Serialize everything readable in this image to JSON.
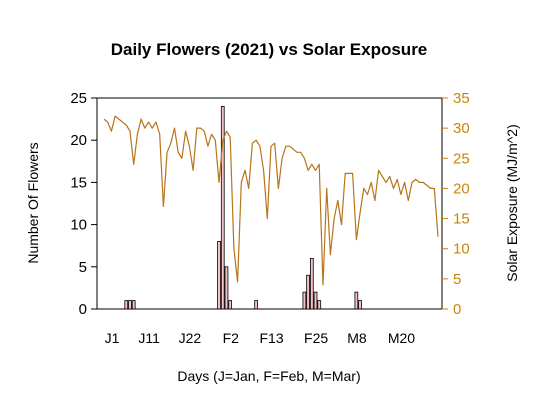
{
  "chart_data": {
    "type": "bar+line",
    "title": "Daily Flowers (2021) vs Solar Exposure",
    "xlabel": "Days (J=Jan, F=Feb, M=Mar)",
    "ylabel_left": "Number Of Flowers",
    "ylabel_right": "Solar Exposure (MJ/m^2)",
    "x_range": [
      1,
      91
    ],
    "x_unit": "day of year 2021",
    "ylim_left": [
      0,
      25
    ],
    "ylim_right": [
      0,
      35
    ],
    "yticks_left": [
      0,
      5,
      10,
      15,
      20,
      25
    ],
    "yticks_right": [
      0,
      5,
      10,
      15,
      20,
      25,
      30,
      35
    ],
    "xticks": [
      {
        "day": 1,
        "label": "J1"
      },
      {
        "day": 11,
        "label": "J11"
      },
      {
        "day": 22,
        "label": "J22"
      },
      {
        "day": 33,
        "label": "F2"
      },
      {
        "day": 44,
        "label": "F13"
      },
      {
        "day": 56,
        "label": "F25"
      },
      {
        "day": 67,
        "label": "M8"
      },
      {
        "day": 79,
        "label": "M20"
      }
    ],
    "colors": {
      "bars_fill": "#f4c2c8",
      "bars_stroke": "#000000",
      "line": "#b8741a",
      "right_axis": "#c8860b"
    },
    "flowers": [
      {
        "day": 7,
        "value": 1
      },
      {
        "day": 8,
        "value": 1
      },
      {
        "day": 9,
        "value": 1
      },
      {
        "day": 32,
        "value": 8
      },
      {
        "day": 33,
        "value": 24
      },
      {
        "day": 34,
        "value": 5
      },
      {
        "day": 35,
        "value": 1
      },
      {
        "day": 42,
        "value": 1
      },
      {
        "day": 55,
        "value": 2
      },
      {
        "day": 56,
        "value": 4
      },
      {
        "day": 57,
        "value": 6
      },
      {
        "day": 58,
        "value": 2
      },
      {
        "day": 59,
        "value": 1
      },
      {
        "day": 69,
        "value": 2
      },
      {
        "day": 70,
        "value": 1
      }
    ],
    "solar_exposure": {
      "x": [
        1,
        2,
        3,
        4,
        5,
        6,
        7,
        8,
        9,
        10,
        11,
        12,
        13,
        14,
        15,
        16,
        17,
        18,
        19,
        20,
        21,
        22,
        23,
        24,
        25,
        26,
        27,
        28,
        29,
        30,
        31,
        32,
        33,
        34,
        35,
        36,
        37,
        38,
        39,
        40,
        41,
        42,
        43,
        44,
        45,
        46,
        47,
        48,
        49,
        50,
        51,
        52,
        53,
        54,
        55,
        56,
        57,
        58,
        59,
        60,
        61,
        62,
        63,
        64,
        65,
        66,
        67,
        68,
        69,
        70,
        71,
        72,
        73,
        74,
        75,
        76,
        77,
        78,
        79,
        80,
        81,
        82,
        83,
        84,
        85,
        86,
        87,
        88,
        89,
        90,
        91
      ],
      "y": [
        31.5,
        31,
        29.5,
        32,
        31.5,
        31,
        30.5,
        29.5,
        24,
        29,
        31.5,
        30,
        31,
        30,
        31,
        29,
        17,
        26,
        27.5,
        30,
        26,
        25,
        29.5,
        27,
        23,
        30,
        30,
        29.5,
        27,
        29,
        28,
        21,
        28,
        29.5,
        28.5,
        10,
        4.5,
        21,
        23,
        20,
        27.5,
        28,
        27,
        23,
        15,
        27,
        27.5,
        20,
        25,
        27,
        27,
        26.5,
        26,
        26,
        25,
        23,
        24,
        23,
        24,
        4,
        20,
        9,
        15,
        18,
        14,
        22.5,
        22.5,
        22.5,
        11.5,
        16,
        20,
        19,
        21,
        18,
        23,
        22,
        21,
        22,
        20,
        21.5,
        19,
        21,
        18,
        21,
        21.5,
        21,
        21,
        20.5,
        20,
        20,
        12
      ]
    }
  }
}
